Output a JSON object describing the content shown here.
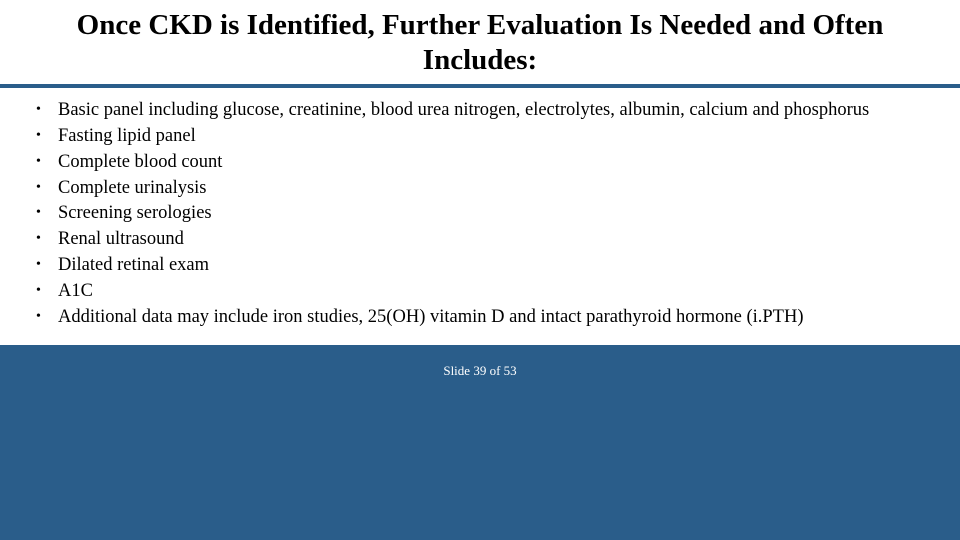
{
  "title": "Once CKD is Identified, Further Evaluation Is Needed and Often Includes:",
  "bullets": {
    "item0": "Basic panel including glucose, creatinine, blood urea nitrogen, electrolytes, albumin, calcium and phosphorus",
    "item1": "Fasting lipid panel",
    "item2": "Complete blood count",
    "item3": "Complete urinalysis",
    "item4": "Screening serologies",
    "item5": "Renal ultrasound",
    "item6": "Dilated retinal exam",
    "item7": "A1C",
    "item8": "Additional data may include iron studies, 25(OH) vitamin D and intact parathyroid hormone (i.PTH)"
  },
  "footer": "Slide 39 of 53",
  "colors": {
    "background": "#2a5d8a",
    "panel_bg": "#ffffff",
    "text": "#000000",
    "footer_text": "#ffffff"
  },
  "typography": {
    "title_fontsize": 29,
    "body_fontsize": 18.5,
    "footer_fontsize": 13,
    "font_family": "Times New Roman"
  }
}
